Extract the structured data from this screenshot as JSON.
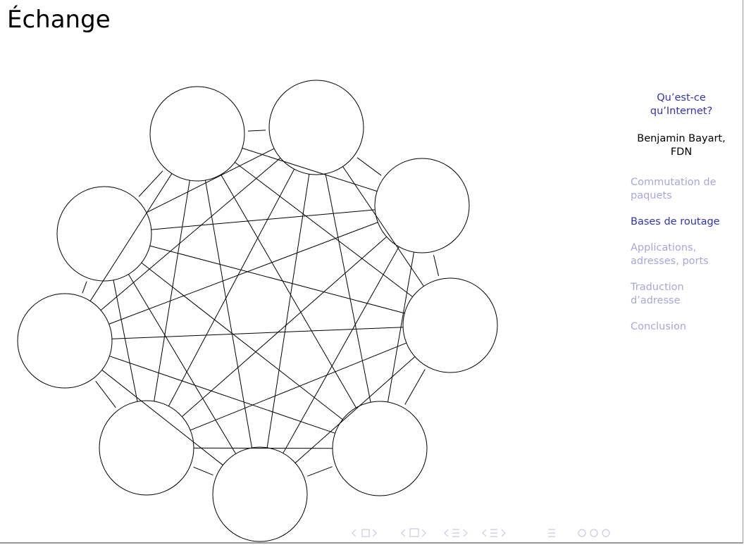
{
  "slide": {
    "title": "Échange",
    "sidebar": {
      "title": "Qu’est-ce qu’Internet?",
      "author": "Benjamin Bayart, FDN",
      "sections": [
        "Commutation de paquets",
        "Bases de routage",
        "Applications, adresses, ports",
        "Traduction d’adresse",
        "Conclusion"
      ],
      "active_section": 1
    }
  }
}
